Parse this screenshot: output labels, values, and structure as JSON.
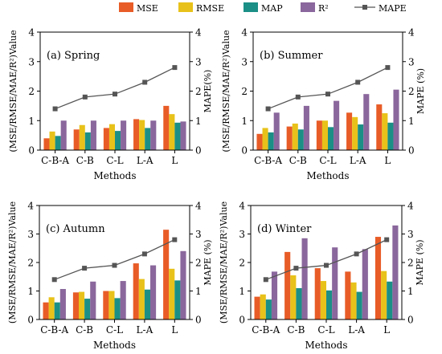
{
  "legend": {
    "items": [
      {
        "name": "MSE",
        "kind": "bar",
        "color": "#E85C27"
      },
      {
        "name": "RMSE",
        "kind": "bar",
        "color": "#E8C21A"
      },
      {
        "name": "MAP",
        "kind": "bar",
        "color": "#1B8F86"
      },
      {
        "name": "R²",
        "kind": "bar",
        "color": "#8A679C"
      },
      {
        "name": "MAPE",
        "kind": "line",
        "color": "#555555"
      }
    ]
  },
  "chart_data": [
    {
      "type": "bar",
      "title": "(a) Spring",
      "xlabel": "Methods",
      "ylabel": "(MSE/RMSE/MAE/R²)Value",
      "y2label": "MAPE(%)",
      "categories": [
        "C-B-A",
        "C-B",
        "C-L",
        "L-A",
        "L"
      ],
      "ylim": [
        0,
        4
      ],
      "y2lim": [
        0,
        4
      ],
      "yticks": [
        "0",
        "1",
        "2",
        "3",
        "4"
      ],
      "y2ticks": [
        "0",
        "1",
        "2",
        "3",
        "4"
      ],
      "series": [
        {
          "name": "MSE",
          "values": [
            0.4,
            0.7,
            0.75,
            1.05,
            1.5
          ]
        },
        {
          "name": "RMSE",
          "values": [
            0.63,
            0.85,
            0.88,
            1.02,
            1.22
          ]
        },
        {
          "name": "MAP",
          "values": [
            0.48,
            0.6,
            0.65,
            0.75,
            0.93
          ]
        },
        {
          "name": "R²",
          "values": [
            1.0,
            1.0,
            1.0,
            1.0,
            0.97
          ]
        }
      ],
      "line": {
        "name": "MAPE",
        "values": [
          1.4,
          1.8,
          1.9,
          2.3,
          2.8
        ]
      }
    },
    {
      "type": "bar",
      "title": "(b) Summer",
      "xlabel": "Methods",
      "ylabel": "(MSE/RMSE/MAE/R²)Value",
      "y2label": "MAPE (%)",
      "categories": [
        "C-B-A",
        "C-B",
        "C-L",
        "L-A",
        "L"
      ],
      "ylim": [
        0,
        4
      ],
      "y2lim": [
        0,
        4
      ],
      "yticks": [
        "0",
        "1",
        "2",
        "3",
        "4"
      ],
      "y2ticks": [
        "0",
        "1",
        "2",
        "3",
        "4"
      ],
      "series": [
        {
          "name": "MSE",
          "values": [
            0.55,
            0.8,
            1.0,
            1.27,
            1.55
          ]
        },
        {
          "name": "RMSE",
          "values": [
            0.75,
            0.9,
            1.0,
            1.12,
            1.25
          ]
        },
        {
          "name": "MAP",
          "values": [
            0.6,
            0.7,
            0.78,
            0.87,
            0.93
          ]
        },
        {
          "name": "R²",
          "values": [
            1.27,
            1.5,
            1.67,
            1.9,
            2.05
          ]
        }
      ],
      "line": {
        "name": "MAPE",
        "values": [
          1.4,
          1.8,
          1.9,
          2.3,
          2.8
        ]
      }
    },
    {
      "type": "bar",
      "title": "(c) Autumn",
      "xlabel": "Methods",
      "ylabel": "(MSE/RMSE/MAE/R²)Value",
      "y2label": "MAPE (%)",
      "categories": [
        "C-B-A",
        "C-B",
        "C-L",
        "L-A",
        "L"
      ],
      "ylim": [
        0,
        4
      ],
      "y2lim": [
        0,
        4
      ],
      "yticks": [
        "0",
        "1",
        "2",
        "3",
        "4"
      ],
      "y2ticks": [
        "0",
        "1",
        "2",
        "3",
        "4"
      ],
      "series": [
        {
          "name": "MSE",
          "values": [
            0.6,
            0.95,
            1.0,
            1.97,
            3.15
          ]
        },
        {
          "name": "RMSE",
          "values": [
            0.78,
            0.97,
            1.0,
            1.42,
            1.78
          ]
        },
        {
          "name": "MAP",
          "values": [
            0.6,
            0.73,
            0.75,
            1.05,
            1.37
          ]
        },
        {
          "name": "R²",
          "values": [
            1.07,
            1.33,
            1.35,
            1.9,
            2.4
          ]
        }
      ],
      "line": {
        "name": "MAPE",
        "values": [
          1.4,
          1.8,
          1.9,
          2.3,
          2.8
        ]
      }
    },
    {
      "type": "bar",
      "title": "(d) Winter",
      "xlabel": "Methods",
      "ylabel": "(MSE/RMSE/MAE/R²)Value",
      "y2label": "MAPE (%)",
      "categories": [
        "C-B-A",
        "C-B",
        "C-L",
        "L-A",
        "L"
      ],
      "ylim": [
        0,
        4
      ],
      "y2lim": [
        0,
        4
      ],
      "yticks": [
        "0",
        "1",
        "2",
        "3",
        "4"
      ],
      "y2ticks": [
        "0",
        "1",
        "2",
        "3",
        "4"
      ],
      "series": [
        {
          "name": "MSE",
          "values": [
            0.8,
            2.37,
            1.8,
            1.68,
            2.9
          ]
        },
        {
          "name": "RMSE",
          "values": [
            0.88,
            1.55,
            1.35,
            1.3,
            1.7
          ]
        },
        {
          "name": "MAP",
          "values": [
            0.7,
            1.1,
            1.02,
            0.97,
            1.33
          ]
        },
        {
          "name": "R²",
          "values": [
            1.68,
            2.85,
            2.53,
            2.47,
            3.3
          ]
        }
      ],
      "line": {
        "name": "MAPE",
        "values": [
          1.4,
          1.8,
          1.9,
          2.3,
          2.8
        ]
      }
    }
  ]
}
